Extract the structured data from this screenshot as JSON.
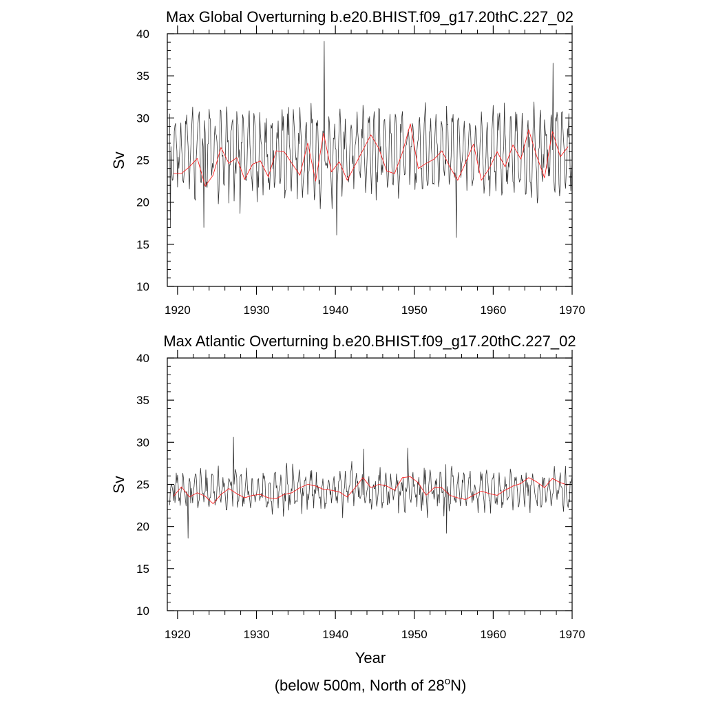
{
  "figure": {
    "xlabel": "Year",
    "footer": {
      "prefix": "(below 500m, North of 28",
      "superscript": "o",
      "suffix": "N)"
    }
  },
  "colors": {
    "raw_series": "#333333",
    "smoothed_series": "#ff2020",
    "axes": "#000000",
    "background": "#ffffff"
  },
  "chart_data": [
    {
      "type": "line",
      "title": "Max Global Overturning b.e20.BHIST.f09_g17.20thC.227_02",
      "xlabel": "",
      "ylabel": "Sv",
      "xlim": [
        1918.7,
        1970
      ],
      "ylim": [
        10,
        40
      ],
      "xticks": [
        1920,
        1930,
        1940,
        1950,
        1960,
        1970
      ],
      "yticks": [
        10,
        15,
        20,
        25,
        30,
        35,
        40
      ],
      "grid": false,
      "series": [
        {
          "name": "monthly",
          "style": "thin-dark",
          "generator": {
            "seed": 20227,
            "mean": 26,
            "amplitude": 3.8,
            "noise": 2.6,
            "start": 1919,
            "end": 1970,
            "per_year": 12
          },
          "notable_points": [
            [
              1919.1,
              17.0
            ],
            [
              1923.3,
              17.0
            ],
            [
              1938.6,
              39.1
            ],
            [
              1940.2,
              16.1
            ],
            [
              1955.3,
              15.8
            ],
            [
              1967.6,
              36.5
            ]
          ]
        },
        {
          "name": "annual-mean",
          "style": "thin-red",
          "x": [
            1919.5,
            1920.5,
            1921.5,
            1922.5,
            1923.5,
            1924.5,
            1925.5,
            1926.5,
            1927.5,
            1928.5,
            1929.5,
            1930.5,
            1931.5,
            1932.5,
            1933.5,
            1934.5,
            1935.5,
            1936.5,
            1937.5,
            1938.5,
            1939.5,
            1940.5,
            1941.5,
            1942.5,
            1943.5,
            1944.5,
            1945.5,
            1946.5,
            1947.5,
            1948.5,
            1949.5,
            1950.5,
            1951.5,
            1952.5,
            1953.5,
            1954.5,
            1955.5,
            1956.5,
            1957.5,
            1958.5,
            1959.5,
            1960.5,
            1961.5,
            1962.5,
            1963.5,
            1964.5,
            1965.5,
            1966.5,
            1967.5,
            1968.5,
            1969.5
          ],
          "values": [
            23.4,
            23.4,
            24.2,
            25.2,
            21.9,
            23.2,
            26.5,
            24.6,
            25.3,
            22.7,
            24.5,
            24.9,
            23.0,
            26.1,
            26.0,
            24.6,
            23.2,
            27.0,
            22.5,
            28.2,
            23.6,
            24.8,
            22.6,
            24.4,
            26.2,
            28.0,
            26.4,
            23.7,
            23.4,
            25.9,
            29.3,
            24.0,
            24.6,
            25.1,
            26.1,
            24.2,
            22.6,
            24.7,
            26.9,
            22.6,
            24.0,
            26.0,
            24.2,
            26.8,
            25.1,
            28.6,
            25.5,
            22.9,
            28.4,
            25.4,
            26.6
          ]
        }
      ]
    },
    {
      "type": "line",
      "title": "Max Atlantic Overturning b.e20.BHIST.f09_g17.20thC.227_02",
      "xlabel": "Year",
      "ylabel": "Sv",
      "xlim": [
        1918.7,
        1970
      ],
      "ylim": [
        10,
        40
      ],
      "xticks": [
        1920,
        1930,
        1940,
        1950,
        1960,
        1970
      ],
      "yticks": [
        10,
        15,
        20,
        25,
        30,
        35,
        40
      ],
      "grid": false,
      "series": [
        {
          "name": "monthly",
          "style": "thin-dark",
          "generator": {
            "seed": 91733,
            "mean": 24.4,
            "amplitude": 1.5,
            "noise": 1.6,
            "start": 1919,
            "end": 1970,
            "per_year": 12
          },
          "notable_points": [
            [
              1921.3,
              18.6
            ],
            [
              1927.1,
              30.6
            ],
            [
              1949.2,
              29.3
            ],
            [
              1954.1,
              19.2
            ],
            [
              1943.6,
              29.2
            ]
          ]
        },
        {
          "name": "annual-mean",
          "style": "thin-red",
          "x": [
            1919.5,
            1920.5,
            1921.5,
            1922.5,
            1923.5,
            1924.5,
            1925.5,
            1926.5,
            1927.5,
            1928.5,
            1929.5,
            1930.5,
            1931.5,
            1932.5,
            1933.5,
            1934.5,
            1935.5,
            1936.5,
            1937.5,
            1938.5,
            1939.5,
            1940.5,
            1941.5,
            1942.5,
            1943.5,
            1944.5,
            1945.5,
            1946.5,
            1947.5,
            1948.5,
            1949.5,
            1950.5,
            1951.5,
            1952.5,
            1953.5,
            1954.5,
            1955.5,
            1956.5,
            1957.5,
            1958.5,
            1959.5,
            1960.5,
            1961.5,
            1962.5,
            1963.5,
            1964.5,
            1965.5,
            1966.5,
            1967.5,
            1968.5,
            1969.5
          ],
          "values": [
            23.6,
            24.7,
            23.5,
            24.0,
            23.6,
            22.7,
            23.8,
            24.5,
            23.9,
            23.4,
            23.7,
            23.8,
            23.4,
            23.3,
            23.8,
            24.0,
            24.6,
            25.0,
            24.8,
            24.4,
            24.3,
            24.1,
            23.5,
            24.6,
            25.8,
            24.6,
            25.0,
            24.8,
            24.3,
            25.8,
            25.9,
            25.2,
            23.7,
            24.6,
            24.6,
            23.7,
            23.4,
            23.2,
            23.7,
            24.2,
            23.9,
            23.7,
            24.3,
            24.8,
            25.1,
            25.8,
            25.3,
            24.6,
            25.7,
            25.2,
            24.9
          ]
        }
      ]
    }
  ]
}
